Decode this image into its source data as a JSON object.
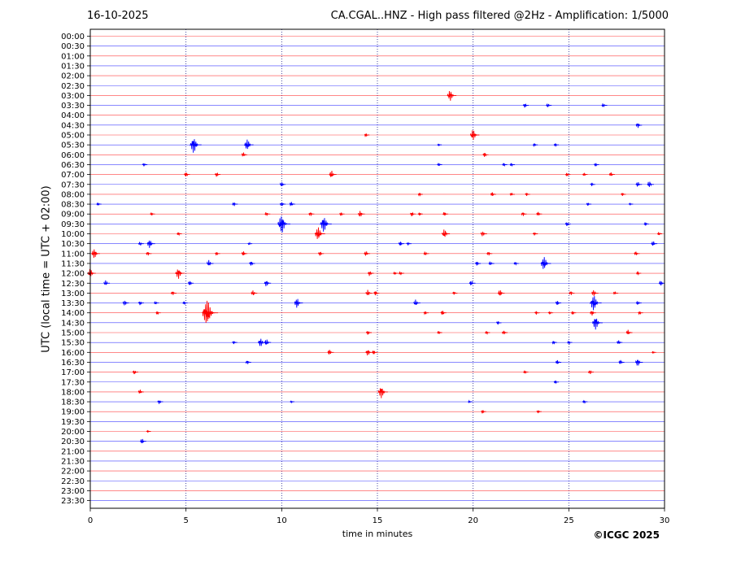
{
  "header": {
    "date": "16-10-2025",
    "title": "CA.CGAL..HNZ - High pass filtered @2Hz - Amplification: 1/5000"
  },
  "footer": {
    "copyright": "©ICGC 2025"
  },
  "chart_data": {
    "type": "line",
    "title": "CA.CGAL..HNZ - High pass filtered @2Hz - Amplification: 1/5000",
    "xlabel": "time in minutes",
    "ylabel": "UTC (local time = UTC + 02:00)",
    "xlim": [
      0,
      30
    ],
    "xticks": [
      0,
      5,
      10,
      15,
      20,
      25,
      30
    ],
    "vertical_gridlines_at": [
      5,
      10,
      15,
      20,
      25
    ],
    "grid": "vertical dotted",
    "trace_colors": [
      "#ff0000",
      "#0000ff"
    ],
    "rows": [
      "00:00",
      "00:30",
      "01:00",
      "01:30",
      "02:00",
      "02:30",
      "03:00",
      "03:30",
      "04:00",
      "04:30",
      "05:00",
      "05:30",
      "06:00",
      "06:30",
      "07:00",
      "07:30",
      "08:00",
      "08:30",
      "09:00",
      "09:30",
      "10:00",
      "10:30",
      "11:00",
      "11:30",
      "12:00",
      "12:30",
      "13:00",
      "13:30",
      "14:00",
      "14:30",
      "15:00",
      "15:30",
      "16:00",
      "16:30",
      "17:00",
      "17:30",
      "18:00",
      "18:30",
      "19:00",
      "19:30",
      "20:00",
      "20:30",
      "21:00",
      "21:30",
      "22:00",
      "22:30",
      "23:00",
      "23:30"
    ],
    "events": [
      {
        "row": "03:00",
        "t": 18.8,
        "amp": 1.0
      },
      {
        "row": "03:30",
        "t": 22.7,
        "amp": 0.4
      },
      {
        "row": "03:30",
        "t": 23.9,
        "amp": 0.4
      },
      {
        "row": "03:30",
        "t": 26.8,
        "amp": 0.4
      },
      {
        "row": "04:30",
        "t": 28.6,
        "amp": 0.5
      },
      {
        "row": "05:00",
        "t": 14.4,
        "amp": 0.3
      },
      {
        "row": "05:00",
        "t": 20.0,
        "amp": 1.0
      },
      {
        "row": "05:30",
        "t": 5.4,
        "amp": 1.4
      },
      {
        "row": "05:30",
        "t": 8.2,
        "amp": 1.0
      },
      {
        "row": "05:30",
        "t": 18.2,
        "amp": 0.2
      },
      {
        "row": "05:30",
        "t": 23.2,
        "amp": 0.3
      },
      {
        "row": "05:30",
        "t": 24.3,
        "amp": 0.3
      },
      {
        "row": "06:00",
        "t": 8.0,
        "amp": 0.4
      },
      {
        "row": "06:00",
        "t": 20.6,
        "amp": 0.4
      },
      {
        "row": "06:30",
        "t": 2.8,
        "amp": 0.3
      },
      {
        "row": "06:30",
        "t": 18.2,
        "amp": 0.3
      },
      {
        "row": "06:30",
        "t": 21.6,
        "amp": 0.3
      },
      {
        "row": "06:30",
        "t": 22.0,
        "amp": 0.3
      },
      {
        "row": "06:30",
        "t": 26.4,
        "amp": 0.3
      },
      {
        "row": "07:00",
        "t": 5.0,
        "amp": 0.4
      },
      {
        "row": "07:00",
        "t": 6.6,
        "amp": 0.4
      },
      {
        "row": "07:00",
        "t": 12.6,
        "amp": 0.7
      },
      {
        "row": "07:00",
        "t": 24.9,
        "amp": 0.3
      },
      {
        "row": "07:00",
        "t": 25.8,
        "amp": 0.3
      },
      {
        "row": "07:00",
        "t": 27.2,
        "amp": 0.4
      },
      {
        "row": "07:30",
        "t": 10.0,
        "amp": 0.4
      },
      {
        "row": "07:30",
        "t": 26.2,
        "amp": 0.3
      },
      {
        "row": "07:30",
        "t": 28.6,
        "amp": 0.5
      },
      {
        "row": "07:30",
        "t": 29.2,
        "amp": 0.6
      },
      {
        "row": "08:00",
        "t": 17.2,
        "amp": 0.3
      },
      {
        "row": "08:00",
        "t": 21.0,
        "amp": 0.4
      },
      {
        "row": "08:00",
        "t": 22.0,
        "amp": 0.3
      },
      {
        "row": "08:00",
        "t": 22.8,
        "amp": 0.3
      },
      {
        "row": "08:00",
        "t": 27.8,
        "amp": 0.3
      },
      {
        "row": "08:30",
        "t": 0.4,
        "amp": 0.3
      },
      {
        "row": "08:30",
        "t": 7.5,
        "amp": 0.4
      },
      {
        "row": "08:30",
        "t": 10.0,
        "amp": 0.4
      },
      {
        "row": "08:30",
        "t": 10.5,
        "amp": 0.4
      },
      {
        "row": "08:30",
        "t": 26.0,
        "amp": 0.3
      },
      {
        "row": "08:30",
        "t": 28.2,
        "amp": 0.2
      },
      {
        "row": "09:00",
        "t": 3.2,
        "amp": 0.3
      },
      {
        "row": "09:00",
        "t": 9.2,
        "amp": 0.4
      },
      {
        "row": "09:00",
        "t": 11.5,
        "amp": 0.4
      },
      {
        "row": "09:00",
        "t": 13.1,
        "amp": 0.3
      },
      {
        "row": "09:00",
        "t": 14.1,
        "amp": 0.6
      },
      {
        "row": "09:00",
        "t": 16.8,
        "amp": 0.4
      },
      {
        "row": "09:00",
        "t": 17.2,
        "amp": 0.3
      },
      {
        "row": "09:00",
        "t": 18.5,
        "amp": 0.4
      },
      {
        "row": "09:00",
        "t": 22.6,
        "amp": 0.4
      },
      {
        "row": "09:00",
        "t": 23.4,
        "amp": 0.4
      },
      {
        "row": "09:30",
        "t": 10.0,
        "amp": 1.6
      },
      {
        "row": "09:30",
        "t": 12.2,
        "amp": 1.4
      },
      {
        "row": "09:30",
        "t": 24.9,
        "amp": 0.4
      },
      {
        "row": "09:30",
        "t": 29.0,
        "amp": 0.3
      },
      {
        "row": "10:00",
        "t": 4.6,
        "amp": 0.3
      },
      {
        "row": "10:00",
        "t": 11.9,
        "amp": 1.2
      },
      {
        "row": "10:00",
        "t": 18.5,
        "amp": 0.8
      },
      {
        "row": "10:00",
        "t": 20.5,
        "amp": 0.5
      },
      {
        "row": "10:00",
        "t": 23.2,
        "amp": 0.3
      },
      {
        "row": "10:00",
        "t": 29.7,
        "amp": 0.3
      },
      {
        "row": "10:30",
        "t": 2.6,
        "amp": 0.4
      },
      {
        "row": "10:30",
        "t": 3.1,
        "amp": 0.8
      },
      {
        "row": "10:30",
        "t": 8.3,
        "amp": 0.2
      },
      {
        "row": "10:30",
        "t": 16.2,
        "amp": 0.4
      },
      {
        "row": "10:30",
        "t": 16.6,
        "amp": 0.3
      },
      {
        "row": "10:30",
        "t": 29.4,
        "amp": 0.5
      },
      {
        "row": "11:00",
        "t": 0.2,
        "amp": 0.9
      },
      {
        "row": "11:00",
        "t": 3.0,
        "amp": 0.4
      },
      {
        "row": "11:00",
        "t": 6.6,
        "amp": 0.3
      },
      {
        "row": "11:00",
        "t": 8.0,
        "amp": 0.4
      },
      {
        "row": "11:00",
        "t": 12.0,
        "amp": 0.4
      },
      {
        "row": "11:00",
        "t": 14.4,
        "amp": 0.5
      },
      {
        "row": "11:00",
        "t": 17.5,
        "amp": 0.4
      },
      {
        "row": "11:00",
        "t": 20.8,
        "amp": 0.4
      },
      {
        "row": "11:00",
        "t": 28.5,
        "amp": 0.4
      },
      {
        "row": "11:30",
        "t": 6.2,
        "amp": 0.6
      },
      {
        "row": "11:30",
        "t": 8.4,
        "amp": 0.4
      },
      {
        "row": "11:30",
        "t": 20.2,
        "amp": 0.4
      },
      {
        "row": "11:30",
        "t": 20.9,
        "amp": 0.4
      },
      {
        "row": "11:30",
        "t": 22.2,
        "amp": 0.3
      },
      {
        "row": "11:30",
        "t": 23.7,
        "amp": 1.2
      },
      {
        "row": "12:00",
        "t": 0.0,
        "amp": 0.8
      },
      {
        "row": "12:00",
        "t": 4.6,
        "amp": 1.0
      },
      {
        "row": "12:00",
        "t": 14.6,
        "amp": 0.5
      },
      {
        "row": "12:00",
        "t": 15.9,
        "amp": 0.3
      },
      {
        "row": "12:00",
        "t": 16.2,
        "amp": 0.4
      },
      {
        "row": "12:00",
        "t": 28.6,
        "amp": 0.3
      },
      {
        "row": "12:30",
        "t": 0.8,
        "amp": 0.5
      },
      {
        "row": "12:30",
        "t": 5.2,
        "amp": 0.4
      },
      {
        "row": "12:30",
        "t": 9.2,
        "amp": 0.6
      },
      {
        "row": "12:30",
        "t": 19.9,
        "amp": 0.5
      },
      {
        "row": "12:30",
        "t": 29.8,
        "amp": 0.5
      },
      {
        "row": "13:00",
        "t": 4.3,
        "amp": 0.4
      },
      {
        "row": "13:00",
        "t": 8.5,
        "amp": 0.5
      },
      {
        "row": "13:00",
        "t": 14.5,
        "amp": 0.6
      },
      {
        "row": "13:00",
        "t": 14.9,
        "amp": 0.4
      },
      {
        "row": "13:00",
        "t": 19.0,
        "amp": 0.3
      },
      {
        "row": "13:00",
        "t": 21.4,
        "amp": 0.6
      },
      {
        "row": "13:00",
        "t": 25.1,
        "amp": 0.4
      },
      {
        "row": "13:00",
        "t": 26.3,
        "amp": 0.6
      },
      {
        "row": "13:00",
        "t": 27.4,
        "amp": 0.3
      },
      {
        "row": "13:30",
        "t": 1.8,
        "amp": 0.5
      },
      {
        "row": "13:30",
        "t": 2.6,
        "amp": 0.4
      },
      {
        "row": "13:30",
        "t": 3.4,
        "amp": 0.3
      },
      {
        "row": "13:30",
        "t": 4.9,
        "amp": 0.3
      },
      {
        "row": "13:30",
        "t": 10.8,
        "amp": 0.9
      },
      {
        "row": "13:30",
        "t": 17.0,
        "amp": 0.6
      },
      {
        "row": "13:30",
        "t": 24.4,
        "amp": 0.4
      },
      {
        "row": "13:30",
        "t": 26.3,
        "amp": 1.4
      },
      {
        "row": "13:30",
        "t": 28.6,
        "amp": 0.4
      },
      {
        "row": "14:00",
        "t": 3.5,
        "amp": 0.3
      },
      {
        "row": "14:00",
        "t": 6.1,
        "amp": 2.2
      },
      {
        "row": "14:00",
        "t": 17.5,
        "amp": 0.3
      },
      {
        "row": "14:00",
        "t": 18.4,
        "amp": 0.4
      },
      {
        "row": "14:00",
        "t": 23.3,
        "amp": 0.3
      },
      {
        "row": "14:00",
        "t": 24.0,
        "amp": 0.3
      },
      {
        "row": "14:00",
        "t": 25.2,
        "amp": 0.3
      },
      {
        "row": "14:00",
        "t": 26.2,
        "amp": 0.5
      },
      {
        "row": "14:00",
        "t": 28.7,
        "amp": 0.3
      },
      {
        "row": "14:30",
        "t": 21.3,
        "amp": 0.3
      },
      {
        "row": "14:30",
        "t": 26.4,
        "amp": 1.2
      },
      {
        "row": "15:00",
        "t": 14.5,
        "amp": 0.4
      },
      {
        "row": "15:00",
        "t": 18.2,
        "amp": 0.3
      },
      {
        "row": "15:00",
        "t": 20.7,
        "amp": 0.3
      },
      {
        "row": "15:00",
        "t": 21.6,
        "amp": 0.4
      },
      {
        "row": "15:00",
        "t": 28.1,
        "amp": 0.5
      },
      {
        "row": "15:30",
        "t": 7.5,
        "amp": 0.3
      },
      {
        "row": "15:30",
        "t": 8.9,
        "amp": 0.8
      },
      {
        "row": "15:30",
        "t": 9.2,
        "amp": 0.6
      },
      {
        "row": "15:30",
        "t": 24.2,
        "amp": 0.3
      },
      {
        "row": "15:30",
        "t": 25.0,
        "amp": 0.3
      },
      {
        "row": "15:30",
        "t": 27.6,
        "amp": 0.4
      },
      {
        "row": "16:00",
        "t": 12.5,
        "amp": 0.5
      },
      {
        "row": "16:00",
        "t": 14.5,
        "amp": 0.6
      },
      {
        "row": "16:00",
        "t": 14.8,
        "amp": 0.4
      },
      {
        "row": "16:00",
        "t": 29.4,
        "amp": 0.2
      },
      {
        "row": "16:30",
        "t": 8.2,
        "amp": 0.4
      },
      {
        "row": "16:30",
        "t": 24.4,
        "amp": 0.4
      },
      {
        "row": "16:30",
        "t": 27.7,
        "amp": 0.4
      },
      {
        "row": "16:30",
        "t": 28.6,
        "amp": 0.7
      },
      {
        "row": "17:00",
        "t": 2.3,
        "amp": 0.4
      },
      {
        "row": "17:00",
        "t": 22.7,
        "amp": 0.3
      },
      {
        "row": "17:00",
        "t": 26.1,
        "amp": 0.4
      },
      {
        "row": "17:30",
        "t": 24.3,
        "amp": 0.3
      },
      {
        "row": "18:00",
        "t": 2.6,
        "amp": 0.4
      },
      {
        "row": "18:00",
        "t": 15.2,
        "amp": 1.1
      },
      {
        "row": "18:30",
        "t": 3.6,
        "amp": 0.4
      },
      {
        "row": "18:30",
        "t": 10.5,
        "amp": 0.2
      },
      {
        "row": "18:30",
        "t": 19.8,
        "amp": 0.2
      },
      {
        "row": "18:30",
        "t": 25.8,
        "amp": 0.3
      },
      {
        "row": "19:00",
        "t": 20.5,
        "amp": 0.3
      },
      {
        "row": "19:00",
        "t": 23.4,
        "amp": 0.3
      },
      {
        "row": "20:00",
        "t": 3.0,
        "amp": 0.2
      },
      {
        "row": "20:30",
        "t": 2.7,
        "amp": 0.5
      }
    ]
  }
}
